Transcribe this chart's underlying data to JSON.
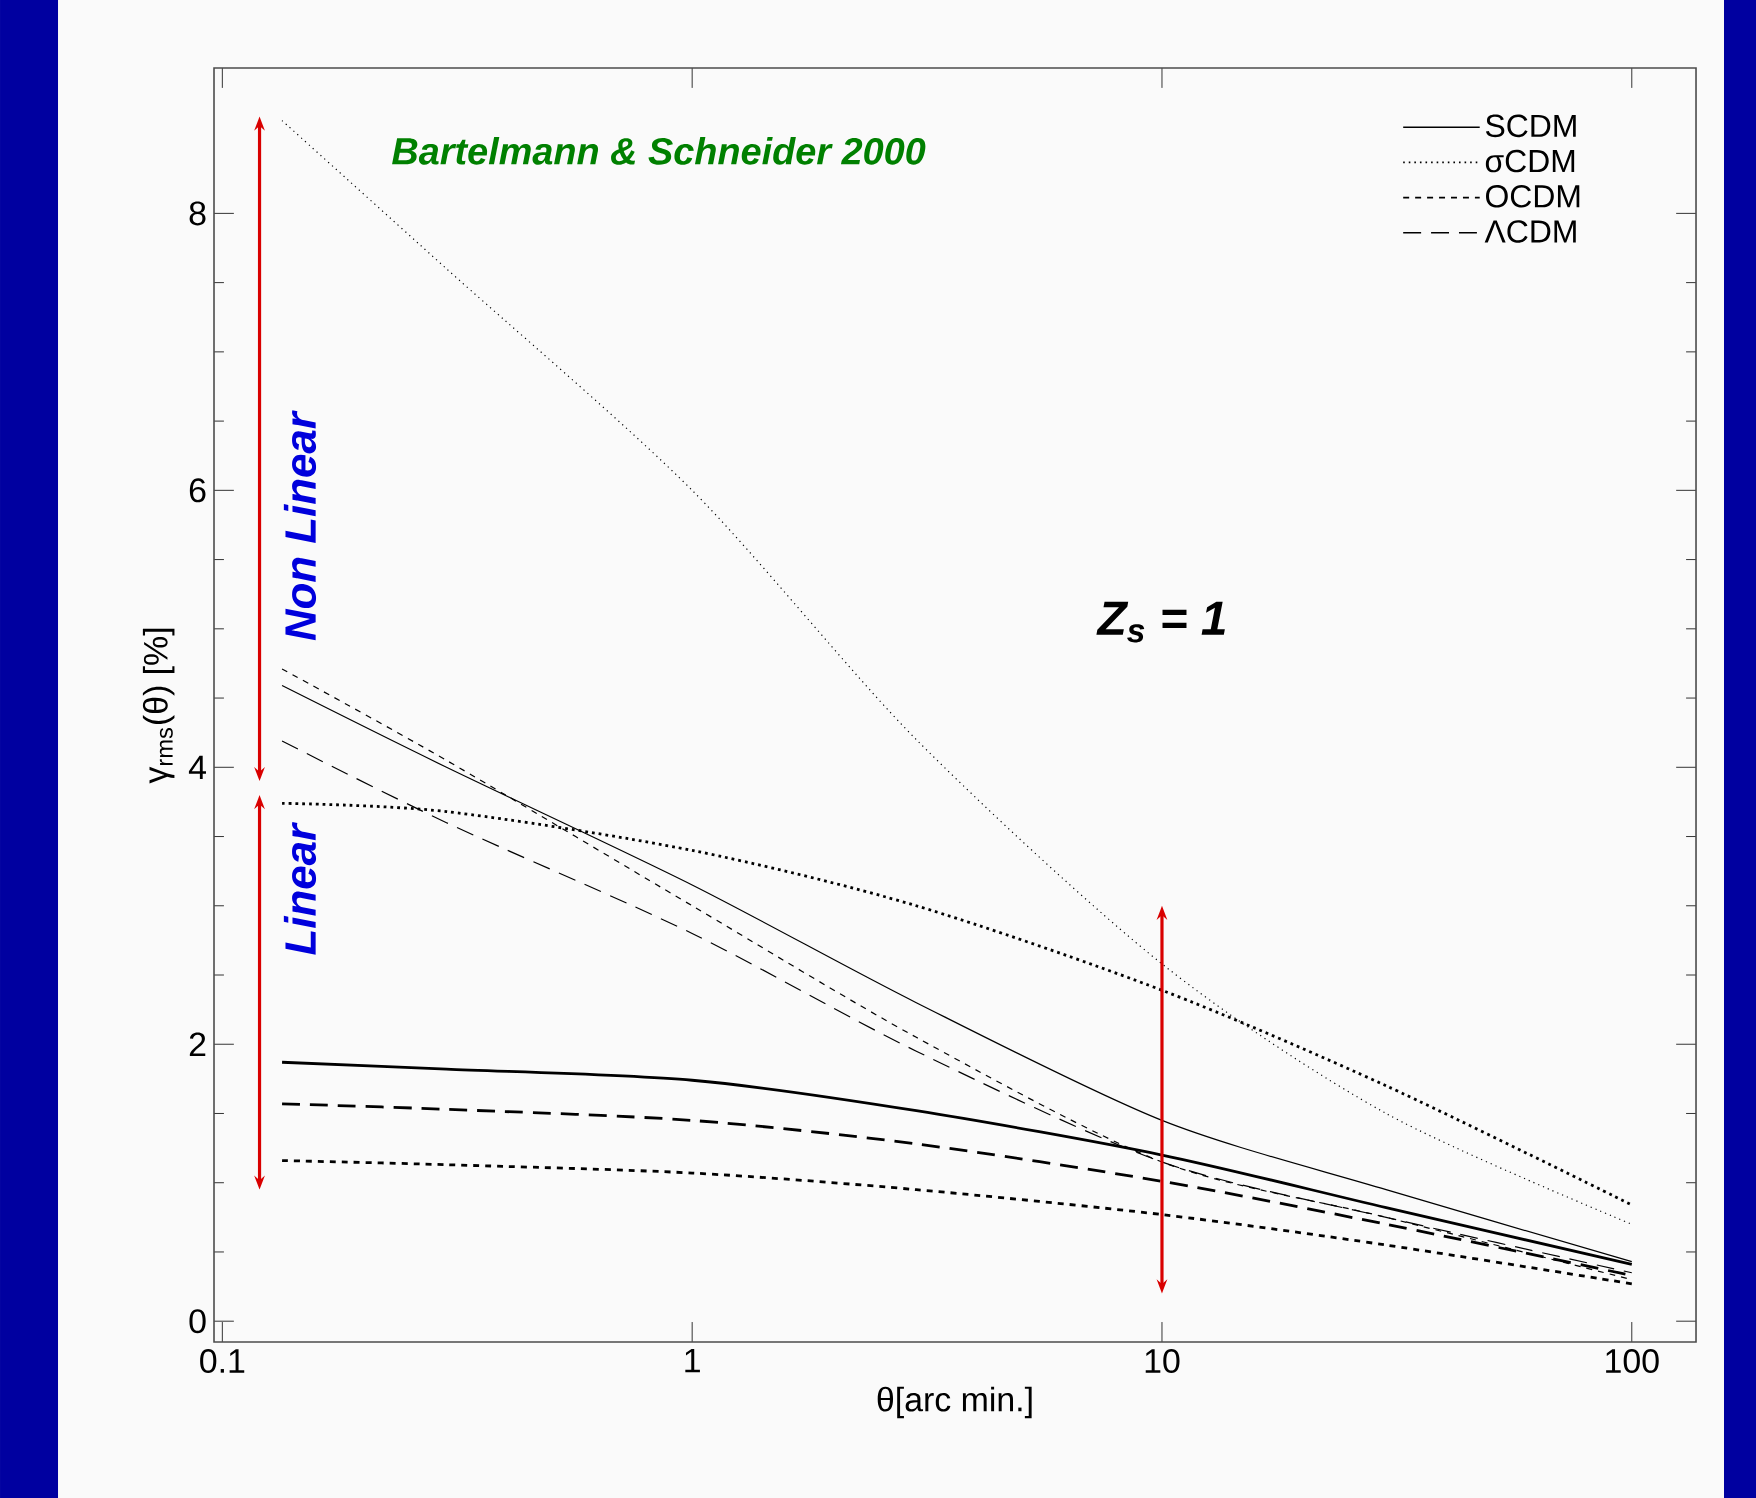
{
  "chart_data": {
    "type": "line",
    "xlabel": "θ[arc min.]",
    "ylabel": "γ$_{rms}$(θ)  [%]",
    "log": "x",
    "xlim": [
      0.096,
      137
    ],
    "ylim": [
      -0.15,
      9.05
    ],
    "xticks": [
      0.1,
      1,
      10,
      100
    ],
    "yticks": [
      0,
      2,
      4,
      6,
      8
    ],
    "legend": "top right",
    "grid": false,
    "marker": "none",
    "x": [
      0.134,
      0.3,
      1,
      3,
      10,
      30,
      100
    ],
    "series": [
      {
        "name": "SCDM",
        "color": "#000000",
        "line_style": "solid",
        "values": [
          4.59,
          4.0,
          3.15,
          2.3,
          1.45,
          0.95,
          0.43
        ]
      },
      {
        "name": "σCDM",
        "color": "#000000",
        "line_style": "dotted",
        "values": [
          8.67,
          7.6,
          6.0,
          4.2,
          2.58,
          1.5,
          0.7
        ]
      },
      {
        "name": "OCDM",
        "color": "#000000",
        "line_style": "dashed",
        "values": [
          4.71,
          4.05,
          3.0,
          2.05,
          1.15,
          0.75,
          0.3
        ]
      },
      {
        "name": "ΛCDM",
        "color": "#000000",
        "line_style": "long dashed",
        "values": [
          4.19,
          3.6,
          2.8,
          1.95,
          1.15,
          0.75,
          0.35
        ]
      },
      {
        "color": "#000000",
        "line_style": "solid",
        "values": [
          1.87,
          1.82,
          1.74,
          1.52,
          1.2,
          0.82,
          0.41
        ]
      },
      {
        "color": "#000000",
        "line_style": "dotted",
        "values": [
          3.74,
          3.68,
          3.4,
          3.0,
          2.39,
          1.7,
          0.84
        ]
      },
      {
        "color": "#000000",
        "line_style": "dashed",
        "values": [
          1.16,
          1.13,
          1.07,
          0.95,
          0.77,
          0.55,
          0.27
        ]
      },
      {
        "color": "#000000",
        "line_style": "long dashed",
        "values": [
          1.57,
          1.53,
          1.45,
          1.28,
          1.01,
          0.7,
          0.33
        ]
      }
    ],
    "annotations": [
      "Bartelmann & Schneider 2000",
      "Z$_{s}$  =  1",
      "Non Linear",
      "Linear"
    ]
  }
}
